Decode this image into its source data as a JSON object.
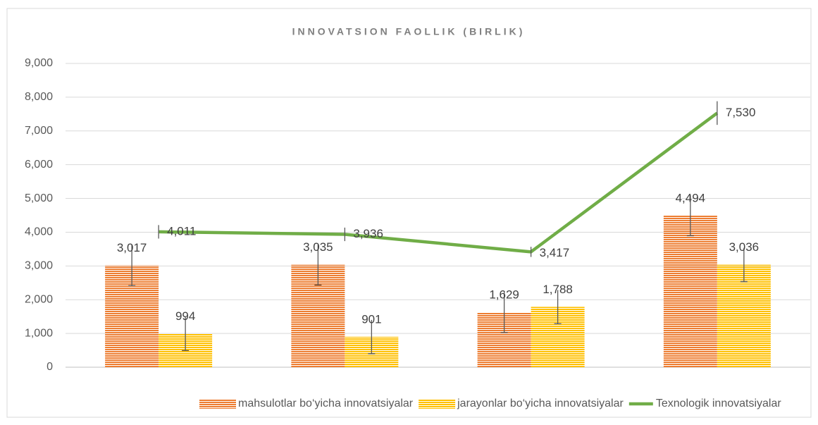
{
  "chart_data": {
    "type": "bar",
    "title": "INNOVATSION FAOLLIK (BIRLIK)",
    "categories": [
      null,
      null,
      null,
      null
    ],
    "series": [
      {
        "name": "mahsulotlar bo‘yicha innovatsiyalar",
        "type": "bar",
        "color": "#ed7d31",
        "values": [
          3017,
          3035,
          1629,
          4494
        ],
        "value_labels": [
          "3,017",
          "3,035",
          "1,629",
          "4,494"
        ],
        "errors": [
          600,
          600,
          600,
          600
        ]
      },
      {
        "name": "jarayonlar bo‘yicha innovatsiyalar",
        "type": "bar",
        "color": "#ffc000",
        "values": [
          994,
          901,
          1788,
          3036
        ],
        "value_labels": [
          "994",
          "901",
          "1,788",
          "3,036"
        ],
        "errors": [
          500,
          500,
          500,
          500
        ]
      },
      {
        "name": "Texnologik innovatsiyalar",
        "type": "line",
        "color": "#70ad47",
        "values": [
          4011,
          3936,
          3417,
          7530
        ],
        "value_labels": [
          "4,011",
          "3,936",
          "3,417",
          "7,530"
        ],
        "errors": [
          200,
          200,
          150,
          350
        ]
      }
    ],
    "ylim": [
      0,
      9000
    ],
    "yticks": [
      0,
      {
        "value": 1000,
        "label": "1,000"
      },
      {
        "value": 2000,
        "label": "2,000"
      },
      {
        "value": 3000,
        "label": "3,000"
      },
      {
        "value": 4000,
        "label": "4,000"
      },
      {
        "value": 5000,
        "label": "5,000"
      },
      {
        "value": 6000,
        "label": "6,000"
      },
      {
        "value": 7000,
        "label": "7,000"
      },
      {
        "value": 8000,
        "label": "8,000"
      },
      {
        "value": 9000,
        "label": "9,000"
      }
    ],
    "grid": true,
    "legend": "bottom"
  }
}
